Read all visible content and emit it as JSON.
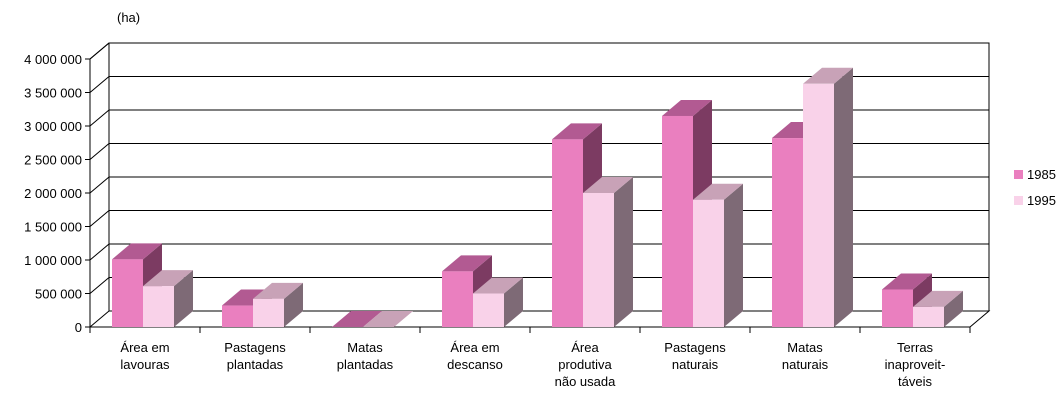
{
  "chart_data": {
    "type": "bar",
    "unit_label": "(ha)",
    "categories": [
      [
        "Área em",
        "lavouras"
      ],
      [
        "Pastagens",
        "plantadas"
      ],
      [
        "Matas",
        "plantadas"
      ],
      [
        "Área em",
        "descanso"
      ],
      [
        "Área",
        "produtiva",
        "não usada"
      ],
      [
        "Pastagens",
        "naturais"
      ],
      [
        "Matas",
        "naturais"
      ],
      [
        "Terras",
        "inaproveit-",
        "táveis"
      ]
    ],
    "series": [
      {
        "name": "1985",
        "values": [
          1010000,
          320000,
          0,
          830000,
          2800000,
          3150000,
          2820000,
          560000
        ]
      },
      {
        "name": "1995",
        "values": [
          610000,
          420000,
          0,
          500000,
          2000000,
          1900000,
          3630000,
          300000
        ]
      }
    ],
    "ylim": [
      0,
      4000000
    ],
    "y_ticks": [
      "0",
      "500 000",
      "1 000 000",
      "1 500 000",
      "2 000 000",
      "2 500 000",
      "3 000 000",
      "3 500 000",
      "4 000 000"
    ],
    "grid": true,
    "legend_position": "right",
    "colors": {
      "s1985_front": "#ea7fbf",
      "s1985_top": "#b25a92",
      "s1985_side": "#7c3b62",
      "s1995_front": "#f9d2e9",
      "s1995_top": "#c8a2b7",
      "s1995_side": "#7e6a76",
      "grid": "#000000"
    }
  }
}
